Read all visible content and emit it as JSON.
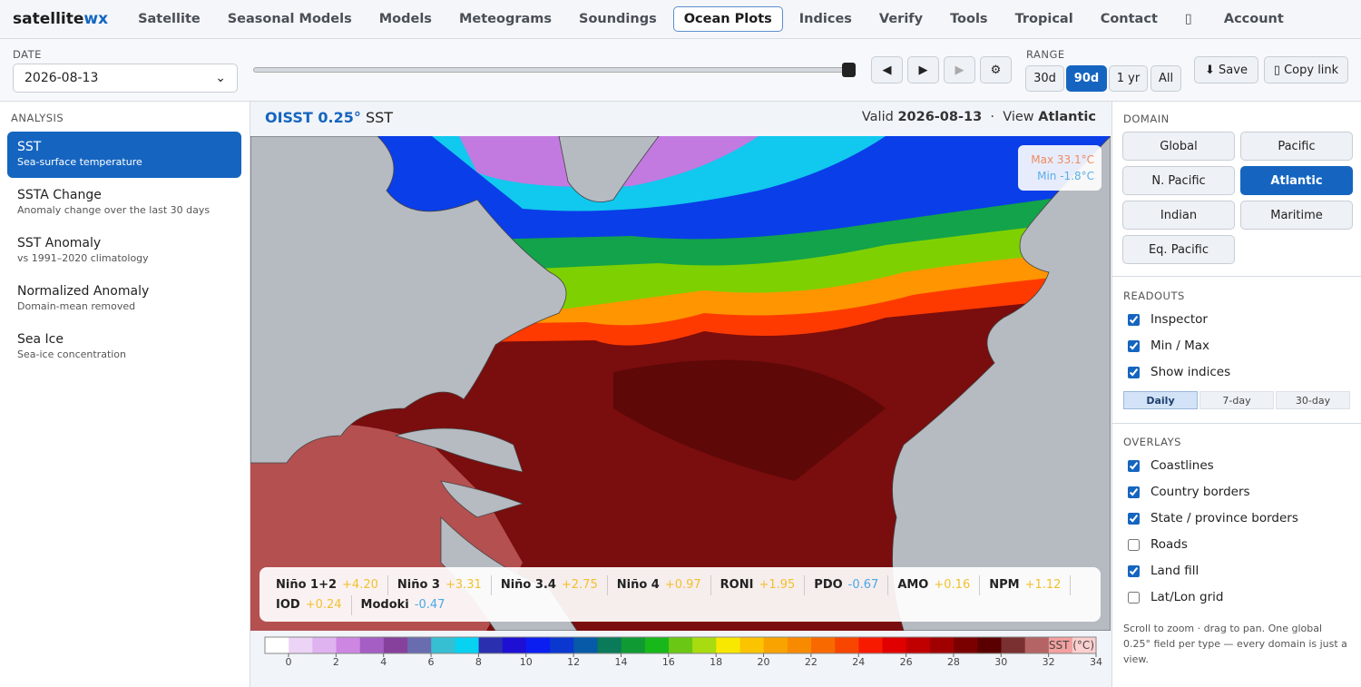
{
  "nav": {
    "brand": "satellite",
    "brand_accent": "wx",
    "items": [
      "Satellite",
      "Seasonal Models",
      "Models",
      "Meteograms",
      "Soundings",
      "Ocean Plots",
      "Indices",
      "Verify",
      "Tools",
      "Tropical",
      "Contact",
      "▯",
      "Account"
    ],
    "active": "Ocean Plots"
  },
  "toolbar": {
    "date_label": "DATE",
    "date_value": "2026-08-13",
    "controls": [
      "◀",
      "▶",
      "▶",
      "⚙"
    ],
    "range_label": "RANGE",
    "range_options": [
      "30d",
      "90d",
      "1 yr",
      "All"
    ],
    "range_active": "90d",
    "save": "⬇ Save",
    "copy_link": "▯ Copy link"
  },
  "analysis": {
    "heading": "ANALYSIS",
    "active": "SST",
    "items": [
      {
        "title": "SST",
        "subtitle": "Sea-surface temperature"
      },
      {
        "title": "SSTA Change",
        "subtitle": "Anomaly change over the last 30 days"
      },
      {
        "title": "SST Anomaly",
        "subtitle": "vs 1991–2020 climatology"
      },
      {
        "title": "Normalized Anomaly",
        "subtitle": "Domain-mean removed"
      },
      {
        "title": "Sea Ice",
        "subtitle": "Sea-ice concentration"
      }
    ]
  },
  "map_header": {
    "product": "OISST 0.25°",
    "field": "SST",
    "valid_label": "Valid",
    "valid_date": "2026-08-13",
    "separator": "·",
    "view_label": "View",
    "view_name": "Atlantic"
  },
  "extremes": {
    "max": "Max 33.1°C",
    "min": "Min -1.8°C"
  },
  "indices": [
    {
      "name": "Niño 1+2",
      "value": "+4.20"
    },
    {
      "name": "Niño 3",
      "value": "+3.31"
    },
    {
      "name": "Niño 3.4",
      "value": "+2.75"
    },
    {
      "name": "Niño 4",
      "value": "+0.97"
    },
    {
      "name": "RONI",
      "value": "+1.95"
    },
    {
      "name": "PDO",
      "value": "-0.67"
    },
    {
      "name": "AMO",
      "value": "+0.16"
    },
    {
      "name": "NPM",
      "value": "+1.12"
    },
    {
      "name": "IOD",
      "value": "+0.24"
    },
    {
      "name": "Modoki",
      "value": "-0.47"
    }
  ],
  "colorbar": {
    "label": "SST (°C)",
    "ticks": [
      0,
      2,
      4,
      6,
      8,
      10,
      12,
      14,
      16,
      18,
      20,
      22,
      24,
      26,
      28,
      30,
      32,
      34
    ]
  },
  "domain": {
    "heading": "DOMAIN",
    "options": [
      "Global",
      "Pacific",
      "N. Pacific",
      "Atlantic",
      "Indian",
      "Maritime",
      "Eq. Pacific"
    ],
    "active": "Atlantic"
  },
  "readouts": {
    "heading": "READOUTS",
    "items": [
      {
        "label": "Inspector",
        "checked": true
      },
      {
        "label": "Min / Max",
        "checked": true
      },
      {
        "label": "Show indices",
        "checked": true
      }
    ],
    "periods": [
      "Daily",
      "7-day",
      "30-day"
    ],
    "period_active": "Daily"
  },
  "overlays": {
    "heading": "OVERLAYS",
    "items": [
      {
        "label": "Coastlines",
        "checked": true
      },
      {
        "label": "Country borders",
        "checked": true
      },
      {
        "label": "State / province borders",
        "checked": true
      },
      {
        "label": "Roads",
        "checked": false
      },
      {
        "label": "Land fill",
        "checked": true
      },
      {
        "label": "Lat/Lon grid",
        "checked": false
      }
    ]
  },
  "footnote": "Scroll to zoom · drag to pan. One global 0.25° field per type — every domain is just a view."
}
